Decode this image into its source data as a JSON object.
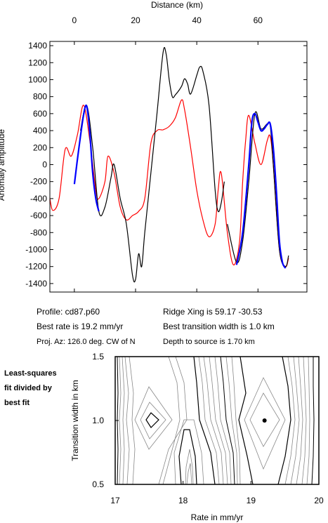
{
  "chart_data": [
    {
      "type": "line",
      "title": "",
      "xlabel": "Distance (km)",
      "ylabel": "Anomaly amplitude",
      "xlim": [
        -8,
        76
      ],
      "ylim": [
        -1500,
        1450
      ],
      "x_ticks": [
        0,
        20,
        40,
        60
      ],
      "y_ticks": [
        1400,
        1200,
        1000,
        800,
        600,
        400,
        200,
        0,
        -200,
        -400,
        -600,
        -800,
        -1000,
        -1200,
        -1400
      ],
      "x_axis_position": "top",
      "grid": false,
      "series": [
        {
          "color": "#ff0000",
          "x": [
            -8,
            -7,
            -5,
            -3,
            -1,
            1,
            3,
            5,
            7,
            8,
            10,
            11,
            13,
            15,
            17,
            19,
            21,
            23,
            25,
            27,
            29,
            31,
            33,
            35,
            36,
            38,
            40,
            42,
            44,
            46,
            47,
            48,
            50,
            52,
            54,
            55,
            56,
            57,
            59,
            61,
            63,
            64,
            65,
            67,
            69,
            70
          ],
          "y": [
            -400,
            -540,
            -400,
            180,
            100,
            350,
            700,
            300,
            -300,
            -400,
            -200,
            100,
            -100,
            -500,
            -650,
            -600,
            -550,
            -400,
            250,
            400,
            410,
            450,
            550,
            760,
            650,
            200,
            -300,
            -650,
            -850,
            -700,
            -300,
            -100,
            -800,
            -1180,
            -900,
            -200,
            300,
            580,
            250,
            0,
            280,
            330,
            0,
            -1000,
            -1200,
            -1100
          ]
        },
        {
          "color": "#000000",
          "x": [
            2,
            4,
            6,
            8,
            10,
            12,
            13,
            15,
            17,
            19,
            20,
            21,
            22,
            23,
            25,
            27,
            29,
            30,
            31,
            32,
            33,
            35,
            36,
            37,
            38,
            40,
            41,
            42,
            44,
            46,
            47,
            48,
            49
          ],
          "y": [
            400,
            700,
            200,
            -550,
            -500,
            -150,
            0,
            -400,
            -700,
            -1300,
            -1350,
            -1050,
            -1200,
            -800,
            -100,
            600,
            1320,
            1300,
            1000,
            800,
            820,
            920,
            1010,
            950,
            830,
            1050,
            1150,
            1100,
            700,
            -300,
            -550,
            -450,
            -200
          ]
        },
        {
          "color": "#000000",
          "x": [
            50,
            53,
            55,
            57,
            59,
            61,
            63,
            64,
            65,
            67,
            69,
            70
          ],
          "y": [
            -700,
            -1150,
            -900,
            -200,
            600,
            420,
            480,
            460,
            0,
            -1000,
            -1200,
            -1070
          ]
        },
        {
          "color": "#0000ff",
          "x": [
            0,
            1.5,
            3,
            4,
            5,
            6,
            7,
            8
          ],
          "y": [
            -230,
            200,
            580,
            690,
            400,
            -100,
            -400,
            -550
          ]
        },
        {
          "color": "#0000ff",
          "x": [
            53,
            55,
            57,
            58,
            59,
            60,
            61,
            62,
            63,
            64,
            65,
            66,
            67,
            68,
            69
          ],
          "y": [
            -1180,
            -800,
            0,
            500,
            600,
            500,
            400,
            420,
            470,
            480,
            200,
            -300,
            -900,
            -1150,
            -1220
          ]
        }
      ]
    },
    {
      "type": "contour",
      "title": "",
      "xlabel": "Rate in mm/yr",
      "ylabel": "Transition width in km",
      "xlim": [
        17,
        20
      ],
      "ylim": [
        0.5,
        1.5
      ],
      "x_ticks": [
        "17",
        "18",
        "19",
        "20"
      ],
      "y_ticks": [
        "0.5",
        "1.0",
        "1.5"
      ],
      "best_fit": {
        "rate": 19.2,
        "width": 1.0
      },
      "grid": false
    }
  ],
  "info": {
    "profile": "Profile: cd87.p60",
    "best_rate": "Best rate is 19.2 mm/yr",
    "proj_az": "Proj. Az: 126.0 deg. CW of N",
    "ridge_xing": "Ridge Xing is 59.17 -30.53",
    "best_transition": "Best transition width is 1.0 km",
    "depth": "Depth to source is   1.70 km"
  },
  "side_label": {
    "line1": "Least-squares",
    "line2": "fit divided by",
    "line3": "best fit"
  }
}
